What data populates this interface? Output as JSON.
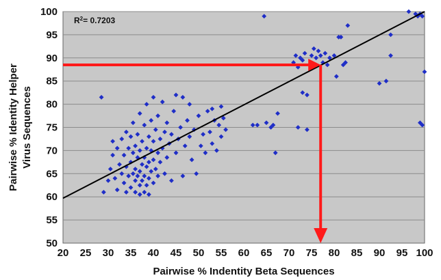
{
  "chart_data": {
    "type": "scatter",
    "title": "",
    "xlabel": "Pairwise % Indentity Beta Sequences",
    "ylabel_line1": "Pairwise % Identity Helper",
    "ylabel_line2": "Virus Sequences",
    "xlim": [
      20,
      100
    ],
    "ylim": [
      50,
      100
    ],
    "xticks": [
      20,
      25,
      30,
      35,
      40,
      45,
      50,
      55,
      60,
      65,
      70,
      75,
      80,
      85,
      90,
      95,
      100
    ],
    "yticks": [
      50,
      55,
      60,
      65,
      70,
      75,
      80,
      85,
      90,
      95,
      100
    ],
    "grid": "horizontal",
    "annotation": {
      "r2_label": "R",
      "r2_sup": "2",
      "r2_value": "= 0.7203"
    },
    "trendline": {
      "x": [
        20,
        100
      ],
      "y": [
        59.7,
        100
      ]
    },
    "reference_arrows": {
      "horizontal": {
        "from_x": 20,
        "to_x": 77,
        "y": 88.5
      },
      "vertical": {
        "x": 77,
        "from_y": 88.5,
        "to_y": 50
      }
    },
    "colors": {
      "points": "#1f2ec7",
      "trend": "#000000",
      "arrows": "#ff1a1a",
      "plot_bg": "#c8c8c8",
      "grid": "#8a8a8a"
    },
    "series": [
      {
        "points": [
          [
            28.5,
            81.5
          ],
          [
            29,
            61
          ],
          [
            30,
            63.5
          ],
          [
            30.5,
            66
          ],
          [
            31,
            69
          ],
          [
            31,
            72
          ],
          [
            31.5,
            64
          ],
          [
            32,
            70.5
          ],
          [
            32,
            61.5
          ],
          [
            32.5,
            67
          ],
          [
            33,
            65
          ],
          [
            33,
            72.5
          ],
          [
            33.5,
            63
          ],
          [
            33.5,
            69
          ],
          [
            34,
            61
          ],
          [
            34,
            66.5
          ],
          [
            34,
            74
          ],
          [
            34.5,
            64.5
          ],
          [
            34.5,
            70.5
          ],
          [
            35,
            62
          ],
          [
            35,
            67.5
          ],
          [
            35,
            73
          ],
          [
            35.5,
            65
          ],
          [
            35.5,
            69.5
          ],
          [
            35.5,
            76
          ],
          [
            36,
            61
          ],
          [
            36,
            63.5
          ],
          [
            36,
            66
          ],
          [
            36,
            71
          ],
          [
            36.5,
            64.5
          ],
          [
            36.5,
            68.5
          ],
          [
            36.5,
            73.5
          ],
          [
            37,
            60.5
          ],
          [
            37,
            62.5
          ],
          [
            37,
            65.5
          ],
          [
            37,
            70
          ],
          [
            37,
            78
          ],
          [
            37.5,
            63.5
          ],
          [
            37.5,
            67
          ],
          [
            37.5,
            72
          ],
          [
            38,
            61
          ],
          [
            38,
            64.5
          ],
          [
            38,
            68.5
          ],
          [
            38,
            75.5
          ],
          [
            38.5,
            62.5
          ],
          [
            38.5,
            66.5
          ],
          [
            38.5,
            70.5
          ],
          [
            38.5,
            80
          ],
          [
            39,
            60.5
          ],
          [
            39,
            64
          ],
          [
            39,
            67.5
          ],
          [
            39,
            73
          ],
          [
            39.5,
            65.5
          ],
          [
            39.5,
            70
          ],
          [
            39.5,
            76.5
          ],
          [
            40,
            63
          ],
          [
            40,
            68
          ],
          [
            40,
            72
          ],
          [
            40,
            81.5
          ],
          [
            40.5,
            66
          ],
          [
            40.5,
            74.5
          ],
          [
            41,
            64.5
          ],
          [
            41,
            69.5
          ],
          [
            41,
            77.5
          ],
          [
            41.5,
            67.5
          ],
          [
            41.5,
            72.5
          ],
          [
            42,
            70.5
          ],
          [
            42,
            80.5
          ],
          [
            42.5,
            65
          ],
          [
            42.5,
            74
          ],
          [
            43,
            68.5
          ],
          [
            43,
            76
          ],
          [
            43.5,
            71.5
          ],
          [
            44,
            63.5
          ],
          [
            44,
            73.5
          ],
          [
            44.5,
            78.5
          ],
          [
            45,
            69.5
          ],
          [
            45,
            82
          ],
          [
            45.5,
            72.5
          ],
          [
            46,
            75
          ],
          [
            46.5,
            64.5
          ],
          [
            46.5,
            81.5
          ],
          [
            47,
            71
          ],
          [
            47.5,
            76.5
          ],
          [
            48,
            73
          ],
          [
            48,
            80
          ],
          [
            48.5,
            68
          ],
          [
            49,
            74.5
          ],
          [
            49.5,
            65
          ],
          [
            50,
            77.5
          ],
          [
            50.5,
            71
          ],
          [
            51,
            73.5
          ],
          [
            51.5,
            69.5
          ],
          [
            52,
            78.5
          ],
          [
            52.5,
            74
          ],
          [
            53,
            71.5
          ],
          [
            53,
            79
          ],
          [
            53.5,
            76.5
          ],
          [
            54,
            70
          ],
          [
            54.5,
            75.5
          ],
          [
            55,
            73
          ],
          [
            55,
            79.5
          ],
          [
            55.5,
            77
          ],
          [
            56,
            74.5
          ],
          [
            62,
            75.5
          ],
          [
            63,
            75.5
          ],
          [
            64.5,
            99
          ],
          [
            65,
            76
          ],
          [
            66,
            75
          ],
          [
            66.5,
            75.5
          ],
          [
            67,
            69.5
          ],
          [
            67.5,
            78
          ],
          [
            71,
            89
          ],
          [
            71.5,
            90.5
          ],
          [
            72,
            88
          ],
          [
            72,
            75
          ],
          [
            72.5,
            90
          ],
          [
            73,
            89.5
          ],
          [
            73,
            82.5
          ],
          [
            73.5,
            91
          ],
          [
            74,
            74.5
          ],
          [
            74,
            82
          ],
          [
            74.5,
            88.5
          ],
          [
            75,
            90.5
          ],
          [
            75.5,
            92
          ],
          [
            76,
            88.5
          ],
          [
            76,
            90
          ],
          [
            76.5,
            91.5
          ],
          [
            77,
            90.5
          ],
          [
            77.5,
            89
          ],
          [
            78,
            91
          ],
          [
            78.5,
            88.5
          ],
          [
            79,
            90
          ],
          [
            80,
            90.5
          ],
          [
            80.5,
            86
          ],
          [
            81,
            94.5
          ],
          [
            81.5,
            94.5
          ],
          [
            82,
            88.5
          ],
          [
            82.5,
            89
          ],
          [
            83,
            97
          ],
          [
            90,
            84.5
          ],
          [
            91.5,
            85
          ],
          [
            92.5,
            95
          ],
          [
            92.5,
            90.5
          ],
          [
            96.5,
            100
          ],
          [
            98,
            99.5
          ],
          [
            98.5,
            99
          ],
          [
            99,
            99.5
          ],
          [
            99,
            76
          ],
          [
            99.5,
            75.5
          ],
          [
            99.5,
            99
          ],
          [
            100,
            87
          ]
        ]
      }
    ]
  }
}
